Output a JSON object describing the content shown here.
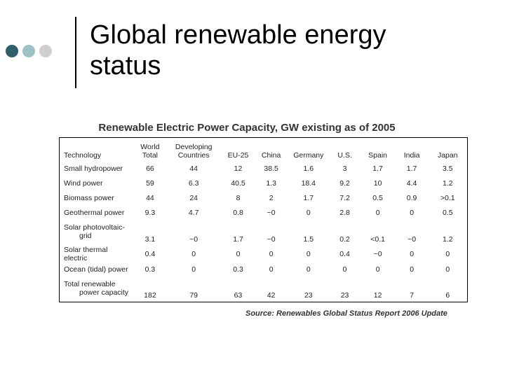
{
  "slide": {
    "title_line1": "Global renewable energy",
    "title_line2": "status",
    "subtitle": "Renewable Electric Power Capacity, GW existing as of 2005",
    "source": "Source: Renewables Global Status Report 2006 Update",
    "dot_colors": [
      "#2f5f6b",
      "#9ec3c7",
      "#cfcfcf"
    ]
  },
  "table": {
    "headers": {
      "technology": "Technology",
      "world_total": [
        "World",
        "Total"
      ],
      "developing": [
        "Developing",
        "Countries"
      ],
      "eu25": "EU-25",
      "china": "China",
      "germany": "Germany",
      "us": "U.S.",
      "spain": "Spain",
      "india": "India",
      "japan": "Japan"
    },
    "rows": [
      {
        "label": [
          "Small hydropower"
        ],
        "values": [
          "66",
          "44",
          "12",
          "38.5",
          "1.6",
          "3",
          "1.7",
          "1.7",
          "3.5"
        ]
      },
      {
        "label": [
          "Wind power"
        ],
        "values": [
          "59",
          "6.3",
          "40.5",
          "1.3",
          "18.4",
          "9.2",
          "10",
          "4.4",
          "1.2"
        ]
      },
      {
        "label": [
          "Biomass power"
        ],
        "values": [
          "44",
          "24",
          "8",
          "2",
          "1.7",
          "7.2",
          "0.5",
          "0.9",
          ">0.1"
        ]
      },
      {
        "label": [
          "Geothermal power"
        ],
        "values": [
          "9.3",
          "4.7",
          "0.8",
          "~0",
          "0",
          "2.8",
          "0",
          "0",
          "0.5"
        ]
      },
      {
        "label": [
          "Solar photovoltaic-",
          "grid"
        ],
        "values": [
          "3.1",
          "~0",
          "1.7",
          "~0",
          "1.5",
          "0.2",
          "<0.1",
          "~0",
          "1.2"
        ]
      },
      {
        "label": [
          "Solar thermal electric"
        ],
        "values": [
          "0.4",
          "0",
          "0",
          "0",
          "0",
          "0.4",
          "~0",
          "0",
          "0"
        ]
      },
      {
        "label": [
          "Ocean (tidal) power"
        ],
        "values": [
          "0.3",
          "0",
          "0.3",
          "0",
          "0",
          "0",
          "0",
          "0",
          "0"
        ]
      },
      {
        "label": [
          "Total renewable",
          "power capacity"
        ],
        "values": [
          "182",
          "79",
          "63",
          "42",
          "23",
          "23",
          "12",
          "7",
          "6"
        ]
      }
    ]
  }
}
